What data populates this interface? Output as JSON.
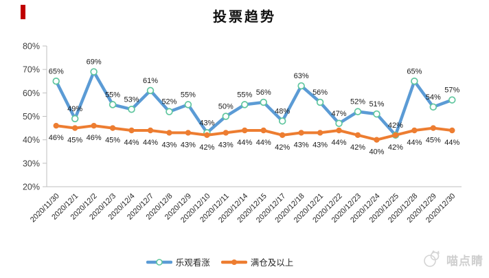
{
  "title": "投票趋势",
  "accent_color": "#C00000",
  "watermark": {
    "text": "喵点睛"
  },
  "axis": {
    "line_color": "#BFBFBF",
    "tick_label_color": "#404040",
    "data_label_color": "#1a1a1a"
  },
  "chart_data": {
    "type": "line",
    "title": "投票趋势",
    "x": [
      "2020/11/30",
      "2020/12/1",
      "2020/12/2",
      "2020/12/3",
      "2020/12/4",
      "2020/12/7",
      "2020/12/8",
      "2020/12/9",
      "2020/12/10",
      "2020/12/11",
      "2020/12/14",
      "2020/12/15",
      "2020/12/17",
      "2020/12/18",
      "2020/12/21",
      "2020/12/22",
      "2020/12/23",
      "2020/12/24",
      "2020/12/25",
      "2020/12/28",
      "2020/12/29",
      "2020/12/30"
    ],
    "series": [
      {
        "name": "乐观看涨",
        "color": "#5B9BD5",
        "marker": "open-circle",
        "marker_stroke": "#5FC69E",
        "label_position": "above",
        "values": [
          65,
          49,
          69,
          55,
          53,
          61,
          52,
          55,
          43,
          50,
          55,
          56,
          48,
          63,
          56,
          47,
          52,
          51,
          42,
          65,
          54,
          57
        ]
      },
      {
        "name": "满仓及以上",
        "color": "#ED7D31",
        "marker": "filled-circle",
        "label_position": "below",
        "values": [
          46,
          45,
          46,
          45,
          44,
          44,
          43,
          43,
          42,
          43,
          44,
          44,
          42,
          43,
          43,
          44,
          42,
          40,
          42,
          44,
          45,
          44
        ]
      }
    ],
    "ylim": [
      20,
      80
    ],
    "yticks": [
      "80%",
      "70%",
      "60%",
      "50%",
      "40%",
      "30%",
      "20%"
    ],
    "data_label_suffix": "%",
    "grid": false,
    "legend_position": "bottom",
    "x_label_rotation": -45
  }
}
